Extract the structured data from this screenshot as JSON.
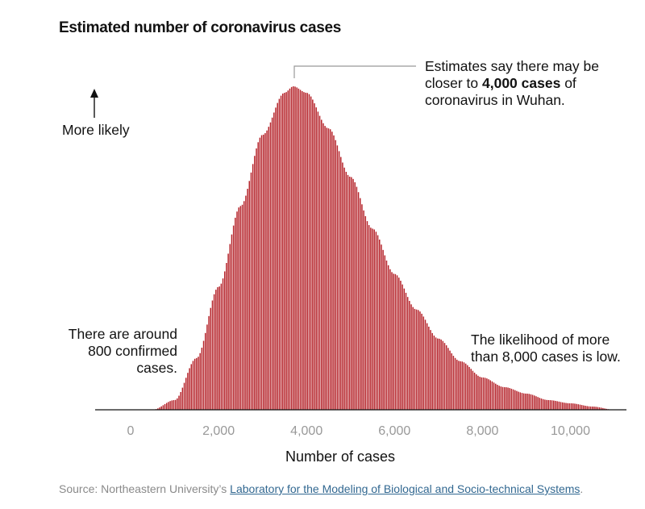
{
  "title": "Estimated number of coronavirus cases",
  "annotations": {
    "peak": {
      "line1": "Estimates say there may be",
      "line2_pre": "closer to ",
      "line2_bold": "4,000 cases",
      "line2_post": " of",
      "line3": "coronavirus in Wuhan."
    },
    "left": {
      "line1": "There are around",
      "line2": "800 confirmed",
      "line3": "cases."
    },
    "right": {
      "line1": "The likelihood of more",
      "line2": "than 8,000 cases is low."
    },
    "ylabel": "More likely"
  },
  "source": {
    "prefix": "Source: Northeastern University’s ",
    "link": "Laboratory for the Modeling of Biological and Socio-technical Systems",
    "suffix": "."
  },
  "colors": {
    "bar": "#b5232a",
    "axis": "#121212",
    "tick_label": "#999999",
    "leader": "#999999"
  },
  "chart_data": {
    "type": "bar",
    "xlabel": "Number of cases",
    "ylabel": "More likely",
    "xlim": [
      -800,
      11200
    ],
    "xticks": [
      0,
      2000,
      4000,
      6000,
      8000,
      10000
    ],
    "xtick_labels": [
      "0",
      "2,000",
      "4,000",
      "6,000",
      "8,000",
      "10,000"
    ],
    "ylim": [
      0,
      1
    ],
    "bin_width": 40,
    "distribution_peak": 3700,
    "shape": "right-skewed (approx. lognormal), relative likelihood",
    "x": [
      500,
      1000,
      1500,
      2000,
      2500,
      3000,
      3500,
      3700,
      4000,
      4500,
      5000,
      5500,
      6000,
      6500,
      7000,
      7500,
      8000,
      8500,
      9000,
      9500,
      10000,
      10500,
      11000
    ],
    "values": [
      0.0,
      0.03,
      0.16,
      0.38,
      0.63,
      0.85,
      0.98,
      1.0,
      0.98,
      0.87,
      0.72,
      0.56,
      0.42,
      0.31,
      0.22,
      0.15,
      0.1,
      0.07,
      0.05,
      0.03,
      0.02,
      0.01,
      0.0
    ],
    "grid": false,
    "legend": "none"
  }
}
